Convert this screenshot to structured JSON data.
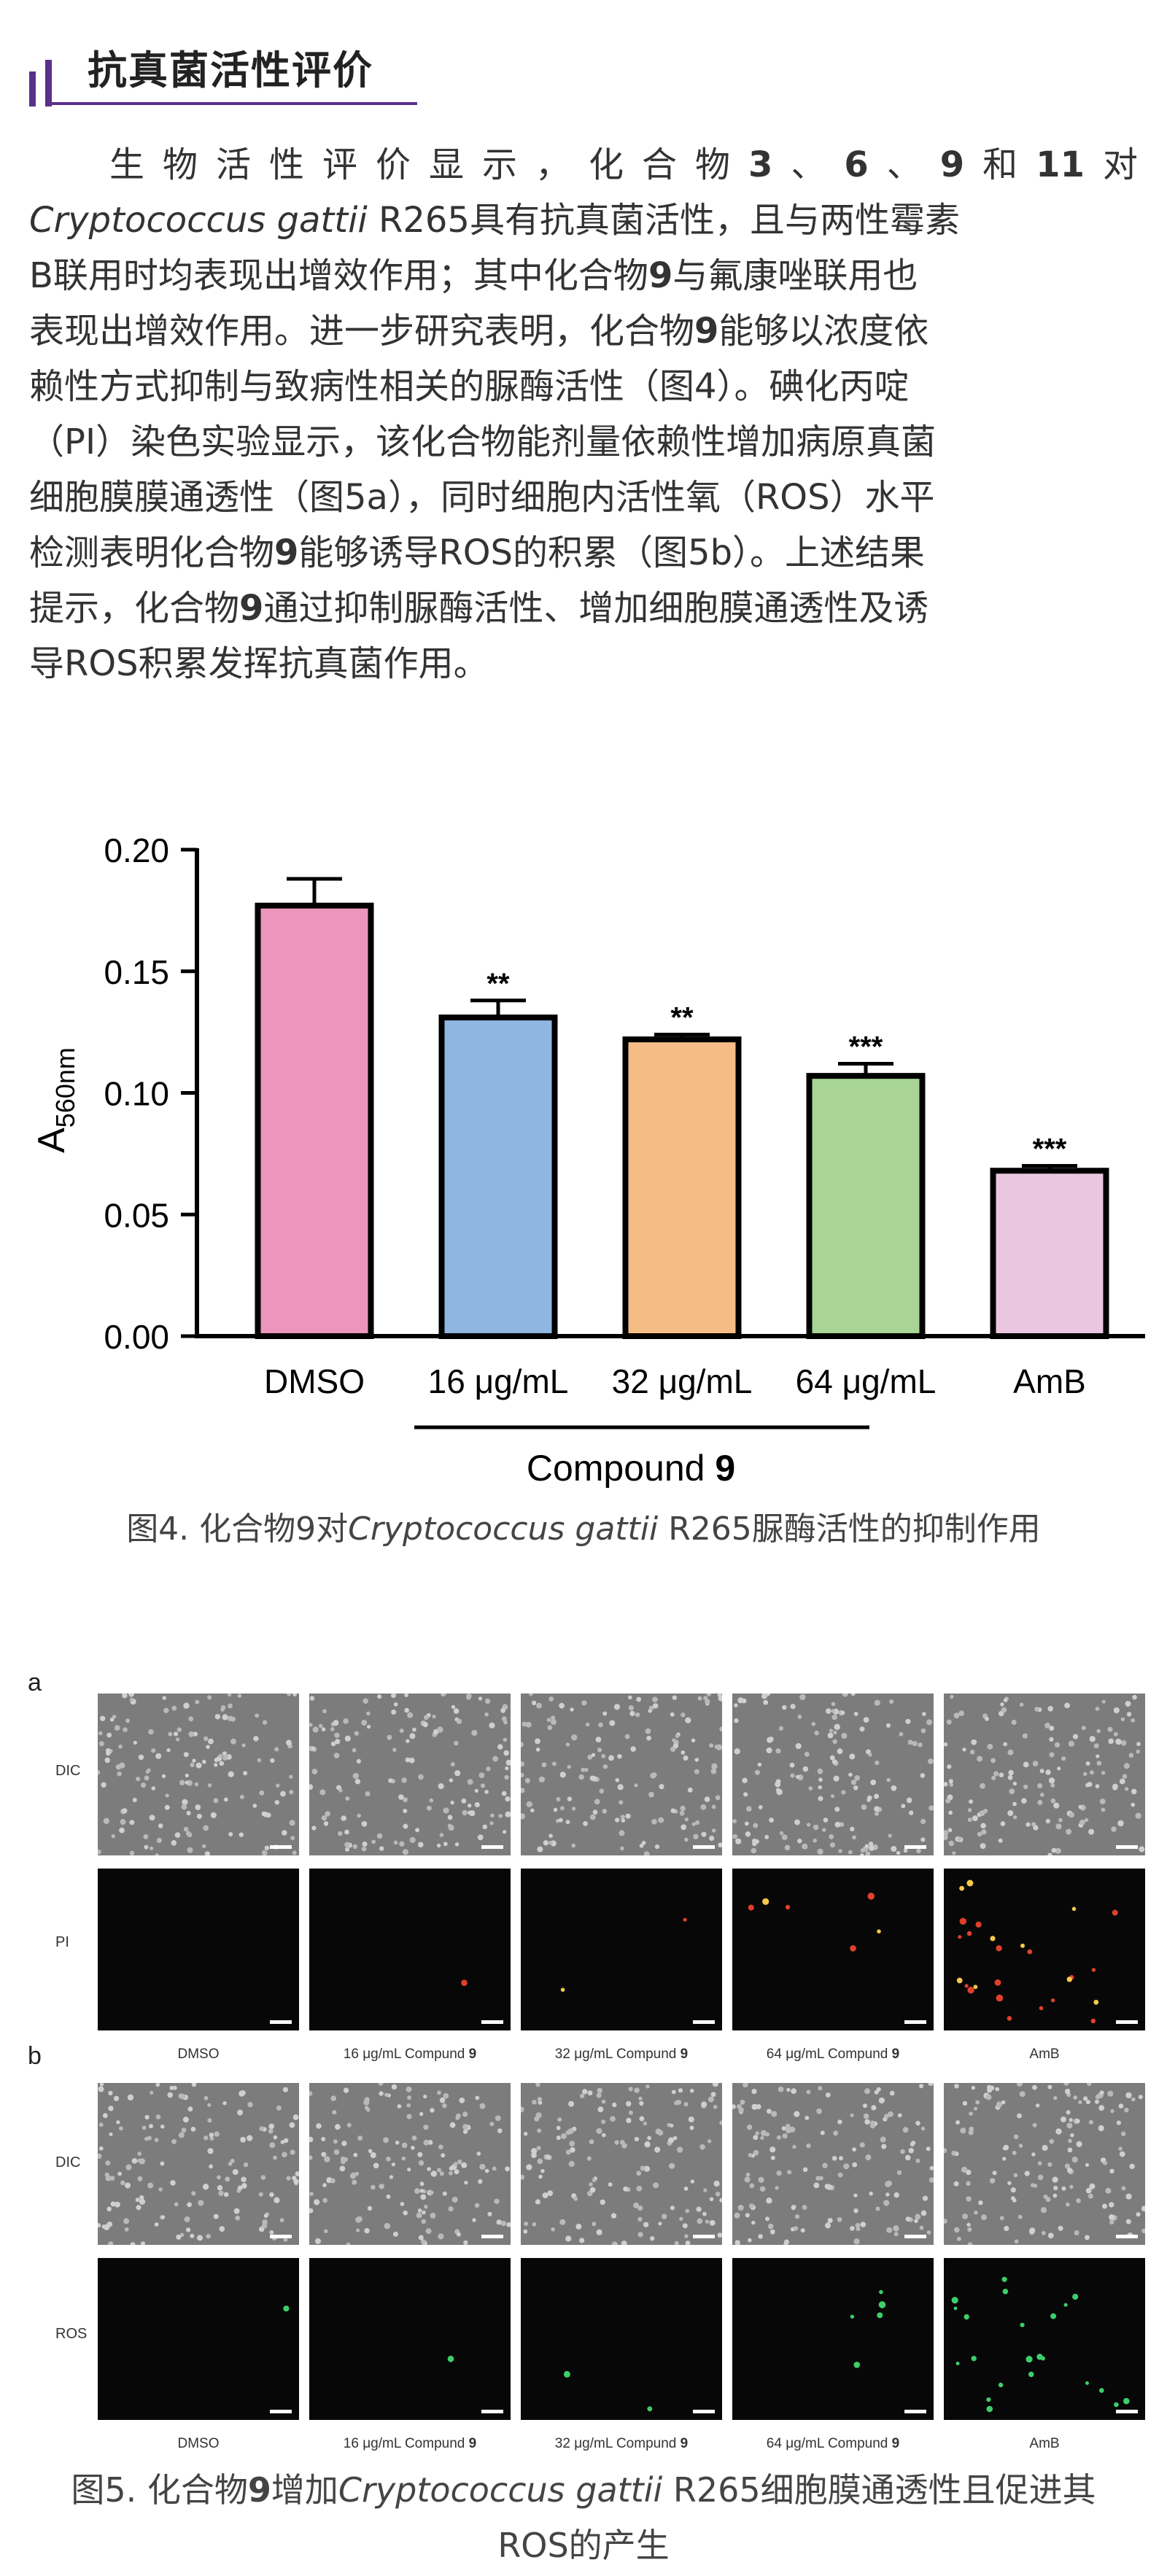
{
  "section": {
    "title": "抗真菌活性评价"
  },
  "body": {
    "l1": [
      "生物活性评价显示，化合物",
      "3",
      "、",
      "6",
      "、",
      "9",
      "和",
      "11",
      "对"
    ],
    "l2": [
      "Cryptococcus gattii",
      " R265具有抗真菌活性，且与两性霉素"
    ],
    "l3": "B联用时均表现出增效作用；其中化合物",
    "l3b": "9",
    "l3c": "与氟康唑联用也",
    "l4": "表现出增效作用。进一步研究表明，化合物",
    "l4b": "9",
    "l4c": "能够以浓度依",
    "l5": "赖性方式抑制与致病性相关的脲酶活性（图4）。碘化丙啶",
    "l6": "（PI）染色实验显示，该化合物能剂量依赖性增加病原真菌",
    "l7": "细胞膜膜通透性（图5a），同时细胞内活性氧（ROS）水平",
    "l8": "检测表明化合物",
    "l8b": "9",
    "l8c": "能够诱导ROS的积累（图5b）。上述结果",
    "l9": "提示，化合物",
    "l9b": "9",
    "l9c": "通过抑制脲酶活性、增加细胞膜通透性及诱",
    "l10": "导ROS积累发挥抗真菌作用。"
  },
  "chart_data": {
    "type": "bar",
    "categories": [
      "DMSO",
      "16 μg/mL",
      "32 μg/mL",
      "64 μg/mL",
      "AmB"
    ],
    "values": [
      0.177,
      0.131,
      0.122,
      0.107,
      0.068
    ],
    "errors": [
      0.011,
      0.007,
      0.002,
      0.005,
      0.002
    ],
    "significance": [
      "",
      "**",
      "**",
      "***",
      "***"
    ],
    "colors": [
      "#ec96bd",
      "#8fb6e1",
      "#f5bd85",
      "#a8d596",
      "#eac6e1"
    ],
    "ylabel_main": "A",
    "ylabel_sub": "560nm",
    "ylim": [
      0,
      0.2
    ],
    "yticks": [
      "0.00",
      "0.05",
      "0.10",
      "0.15",
      "0.20"
    ],
    "group_label": "Compound",
    "group_label_num": "9"
  },
  "fig4_caption": {
    "prefix": "图4. 化合物9对",
    "species": "Cryptococcus gattii",
    "suffix": " R265脲酶活性的抑制作用"
  },
  "fig5": {
    "panel_a": "a",
    "panel_b": "b",
    "row_labels_a": [
      "DIC",
      "PI"
    ],
    "row_labels_b": [
      "DIC",
      "ROS"
    ],
    "columns": [
      {
        "text": "DMSO",
        "num": ""
      },
      {
        "text": "16 μg/mL Compund ",
        "num": "9"
      },
      {
        "text": "32 μg/mL Compund ",
        "num": "9"
      },
      {
        "text": "64 μg/mL Compund ",
        "num": "9"
      },
      {
        "text": "AmB",
        "num": ""
      }
    ],
    "pi_signal_counts": [
      0,
      1,
      2,
      6,
      26
    ],
    "ros_signal_counts": [
      1,
      1,
      2,
      5,
      22
    ],
    "pi_color": "#e0402a",
    "ros_color": "#3ccf6a"
  },
  "fig5_caption": {
    "prefix": "图5. 化合物",
    "num": "9",
    "mid": "增加",
    "species": "Cryptococcus gattii",
    "suffix": " R265细胞膜通透性且促进其",
    "line2": "ROS的产生"
  }
}
